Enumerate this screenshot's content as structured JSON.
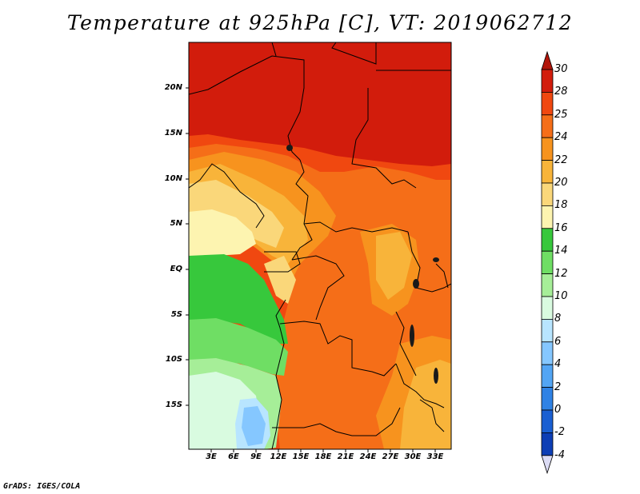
{
  "title": "Temperature at 925hPa [C], VT: 2019062712",
  "credit": "GrADS: IGES/COLA",
  "map": {
    "variable": "Temperature at 925hPa",
    "units": "C",
    "valid_time": "2019062712",
    "lat_labels": [
      "20N",
      "15N",
      "10N",
      "5N",
      "EQ",
      "5S",
      "10S",
      "15S"
    ],
    "lon_labels": [
      "3E",
      "6E",
      "9E",
      "12E",
      "15E",
      "18E",
      "21E",
      "24E",
      "27E",
      "30E",
      "33E"
    ]
  },
  "colorbar": {
    "labels": [
      "30",
      "28",
      "25",
      "24",
      "22",
      "20",
      "18",
      "16",
      "14",
      "12",
      "10",
      "8",
      "6",
      "4",
      "2",
      "0",
      "-2",
      "-4"
    ],
    "colors": [
      "#d21c0c",
      "#f04810",
      "#f56e18",
      "#f7931e",
      "#f8b43a",
      "#fad77a",
      "#fdf4b0",
      "#37c83c",
      "#6fde64",
      "#a6ee98",
      "#d9fbe0",
      "#b8e5ff",
      "#85c7ff",
      "#53a5f4",
      "#2f82e5",
      "#1a5fd2",
      "#0d3eb5",
      "#07148a"
    ],
    "top_arrow_color": "#b2150a",
    "bottom_arrow_color": "#dcdcf5"
  }
}
